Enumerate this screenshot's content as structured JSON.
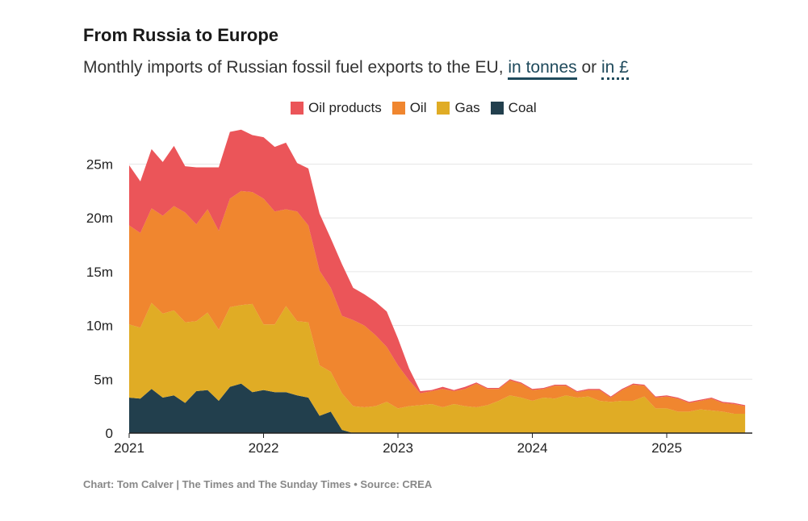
{
  "header": {
    "title": "From Russia to Europe",
    "subtitle_prefix": "Monthly imports of Russian fossil fuel exports to the EU, ",
    "toggle_tonnes": "in tonnes",
    "subtitle_or": " or ",
    "toggle_pounds": "in £"
  },
  "footer": {
    "source": "Chart: Tom Calver | The Times and The Sunday Times • Source: CREA"
  },
  "colors": {
    "oil_products": "#eb5559",
    "oil": "#f0862f",
    "gas": "#e0ac25",
    "coal": "#223f4d",
    "grid": "#e6e6e6",
    "axis": "#222222"
  },
  "chart_data": {
    "type": "area",
    "stacked": true,
    "title": "From Russia to Europe",
    "subtitle": "Monthly imports of Russian fossil fuel exports to the EU, in tonnes or in £",
    "xlabel": "",
    "ylabel": "",
    "ylim": [
      0,
      28000000
    ],
    "yticks": [
      0,
      5000000,
      10000000,
      15000000,
      20000000,
      25000000
    ],
    "ytick_labels": [
      "0",
      "5m",
      "10m",
      "15m",
      "20m",
      "25m"
    ],
    "xticks": [
      "2021",
      "2022",
      "2023",
      "2024",
      "2025"
    ],
    "x_range": [
      "2021-01",
      "2025-08"
    ],
    "legend_position": "top-center",
    "grid": true,
    "months": [
      "2021-01",
      "2021-02",
      "2021-03",
      "2021-04",
      "2021-05",
      "2021-06",
      "2021-07",
      "2021-08",
      "2021-09",
      "2021-10",
      "2021-11",
      "2021-12",
      "2022-01",
      "2022-02",
      "2022-03",
      "2022-04",
      "2022-05",
      "2022-06",
      "2022-07",
      "2022-08",
      "2022-09",
      "2022-10",
      "2022-11",
      "2022-12",
      "2023-01",
      "2023-02",
      "2023-03",
      "2023-04",
      "2023-05",
      "2023-06",
      "2023-07",
      "2023-08",
      "2023-09",
      "2023-10",
      "2023-11",
      "2023-12",
      "2024-01",
      "2024-02",
      "2024-03",
      "2024-04",
      "2024-05",
      "2024-06",
      "2024-07",
      "2024-08",
      "2024-09",
      "2024-10",
      "2024-11",
      "2024-12",
      "2025-01",
      "2025-02",
      "2025-03",
      "2025-04",
      "2025-05",
      "2025-06",
      "2025-07",
      "2025-08"
    ],
    "series": [
      {
        "name": "Coal",
        "values": [
          3.3,
          3.2,
          4.1,
          3.3,
          3.5,
          2.8,
          3.9,
          4.0,
          3.0,
          4.3,
          4.6,
          3.8,
          4.0,
          3.8,
          3.8,
          3.5,
          3.3,
          1.6,
          2.0,
          0.3,
          0,
          0,
          0,
          0,
          0,
          0,
          0,
          0,
          0,
          0,
          0,
          0,
          0,
          0,
          0,
          0,
          0,
          0,
          0,
          0,
          0,
          0,
          0,
          0,
          0,
          0,
          0,
          0,
          0,
          0,
          0,
          0,
          0,
          0,
          0,
          0
        ]
      },
      {
        "name": "Gas",
        "values": [
          6.8,
          6.6,
          8.0,
          7.8,
          7.9,
          7.5,
          6.5,
          7.2,
          6.6,
          7.4,
          7.3,
          8.2,
          6.1,
          6.3,
          8.0,
          6.9,
          7.0,
          4.7,
          3.7,
          3.4,
          2.5,
          2.4,
          2.5,
          2.9,
          2.3,
          2.5,
          2.6,
          2.7,
          2.4,
          2.7,
          2.5,
          2.4,
          2.6,
          3.0,
          3.5,
          3.3,
          3.0,
          3.3,
          3.2,
          3.5,
          3.3,
          3.4,
          3.0,
          2.9,
          3.0,
          3.0,
          3.4,
          2.3,
          2.3,
          2.0,
          2.0,
          2.2,
          2.1,
          2.0,
          1.8,
          1.8
        ]
      },
      {
        "name": "Oil",
        "values": [
          9.2,
          8.8,
          8.8,
          9.1,
          9.7,
          10.2,
          9.0,
          9.6,
          9.2,
          10.1,
          10.6,
          10.4,
          11.7,
          10.5,
          9.0,
          10.2,
          9.0,
          8.8,
          7.8,
          7.2,
          8.0,
          7.6,
          6.6,
          5.1,
          4.0,
          2.4,
          1.1,
          1.2,
          1.7,
          1.2,
          1.6,
          2.2,
          1.5,
          1.1,
          1.4,
          1.3,
          1.0,
          0.8,
          1.2,
          0.9,
          0.5,
          0.6,
          1.0,
          0.4,
          1.0,
          1.5,
          1.0,
          1.0,
          1.1,
          1.2,
          0.8,
          0.8,
          1.1,
          0.8,
          0.9,
          0.7
        ]
      },
      {
        "name": "Oil products",
        "values": [
          5.6,
          4.8,
          5.5,
          5.0,
          5.6,
          4.3,
          5.3,
          3.9,
          5.9,
          6.2,
          5.7,
          5.3,
          5.7,
          6.0,
          6.2,
          4.5,
          5.3,
          5.3,
          4.6,
          4.8,
          3.0,
          2.9,
          3.1,
          3.3,
          2.5,
          1.1,
          0.2,
          0.1,
          0.2,
          0.1,
          0.2,
          0.1,
          0.1,
          0.1,
          0.1,
          0.1,
          0.1,
          0.1,
          0.1,
          0.1,
          0.1,
          0.1,
          0.1,
          0.1,
          0.1,
          0.1,
          0.1,
          0.1,
          0.1,
          0.1,
          0.1,
          0.1,
          0.1,
          0.1,
          0.1,
          0.1
        ]
      }
    ],
    "units_note": "values in millions of tonnes"
  }
}
